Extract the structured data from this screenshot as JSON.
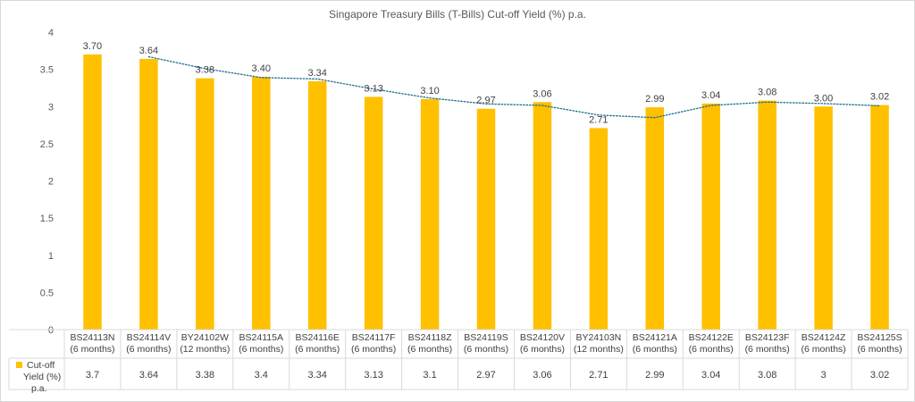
{
  "chart_data": {
    "type": "bar",
    "title": "Singapore Treasury Bills (T-Bills) Cut-off Yield (%) p.a.",
    "categories": [
      [
        "BS24113N",
        "(6 months)"
      ],
      [
        "BS24114V",
        "(6 months)"
      ],
      [
        "BY24102W",
        "(12 months)"
      ],
      [
        "BS24115A",
        "(6 months)"
      ],
      [
        "BS24116E",
        "(6 months)"
      ],
      [
        "BS24117F",
        "(6 months)"
      ],
      [
        "BS24118Z",
        "(6 months)"
      ],
      [
        "BS24119S",
        "(6 months)"
      ],
      [
        "BS24120V",
        "(6 months)"
      ],
      [
        "BY24103N",
        "(12 months)"
      ],
      [
        "BS24121A",
        "(6 months)"
      ],
      [
        "BS24122E",
        "(6 months)"
      ],
      [
        "BS24123F",
        "(6 months)"
      ],
      [
        "BS24124Z",
        "(6 months)"
      ],
      [
        "BS24125S",
        "(6 months)"
      ]
    ],
    "series": [
      {
        "name": "Cut-off Yield (%) p.a.",
        "values": [
          3.7,
          3.64,
          3.38,
          3.4,
          3.34,
          3.13,
          3.1,
          2.97,
          3.06,
          2.71,
          2.99,
          3.04,
          3.08,
          3.0,
          3.02
        ],
        "data_labels": [
          "3.70",
          "3.64",
          "3.38",
          "3.40",
          "3.34",
          "3.13",
          "3.10",
          "2.97",
          "3.06",
          "2.71",
          "2.99",
          "3.04",
          "3.08",
          "3.00",
          "3.02"
        ],
        "table_values": [
          "3.7",
          "3.64",
          "3.38",
          "3.4",
          "3.34",
          "3.13",
          "3.1",
          "2.97",
          "3.06",
          "2.71",
          "2.99",
          "3.04",
          "3.08",
          "3",
          "3.02"
        ],
        "color": "#FFC000"
      }
    ],
    "trendline": {
      "type": "moving-average",
      "color": "#1F6E8C",
      "style": "dotted"
    },
    "ylim": [
      0,
      4
    ],
    "yticks": [
      "0",
      "0.5",
      "1",
      "1.5",
      "2",
      "2.5",
      "3",
      "3.5",
      "4"
    ],
    "ytick_values": [
      0,
      0.5,
      1,
      1.5,
      2,
      2.5,
      3,
      3.5,
      4
    ],
    "grid": false,
    "data_table": true,
    "legend_labels": [
      "Cut-off",
      "Yield (%)",
      "p.a."
    ]
  }
}
